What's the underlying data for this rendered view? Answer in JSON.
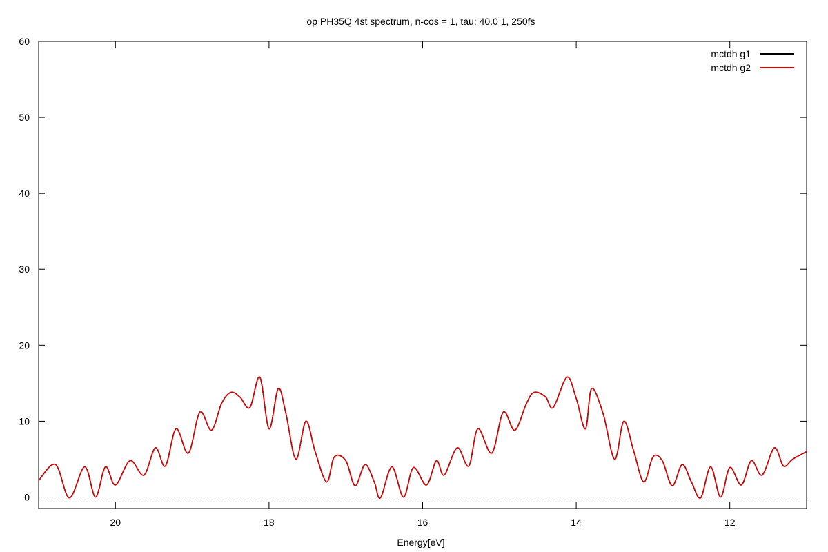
{
  "chart_data": {
    "type": "line",
    "title": "op PH35Q 4st spectrum, n-cos = 1, tau: 40.0 1, 250fs",
    "xlabel": "Energy[eV]",
    "ylabel": "",
    "xlim": [
      21.0,
      11.0
    ],
    "x_reversed": true,
    "ylim": [
      -1.5,
      60
    ],
    "xticks": [
      20,
      18,
      16,
      14,
      12
    ],
    "yticks": [
      0,
      10,
      20,
      30,
      40,
      50,
      60
    ],
    "grid": false,
    "legend_position": "top-right",
    "zero_line": {
      "y": 0,
      "style": "dotted"
    },
    "series": [
      {
        "name": "mctdh g1",
        "color": "#000000",
        "x": [
          21.0,
          20.78,
          20.6,
          20.4,
          20.26,
          20.13,
          20.0,
          19.81,
          19.63,
          19.48,
          19.35,
          19.21,
          19.05,
          18.9,
          18.75,
          18.62,
          18.5,
          18.38,
          18.25,
          18.12,
          18.0,
          17.88,
          17.78,
          17.65,
          17.52,
          17.4,
          17.25,
          17.15,
          17.0,
          16.88,
          16.75,
          16.63,
          16.55,
          16.4,
          16.25,
          16.12,
          15.95,
          15.82,
          15.72,
          15.55,
          15.4,
          15.28,
          15.1,
          14.95,
          14.8,
          14.65,
          14.55,
          14.4,
          14.3,
          14.12,
          14.0,
          13.88,
          13.8,
          13.65,
          13.5,
          13.38,
          13.25,
          13.12,
          13.0,
          12.88,
          12.75,
          12.62,
          12.5,
          12.38,
          12.25,
          12.12,
          12.0,
          11.85,
          11.72,
          11.58,
          11.42,
          11.3,
          11.18,
          11.0
        ],
        "y": [
          2.2,
          4.3,
          -0.1,
          4.0,
          0.0,
          4.0,
          1.6,
          4.8,
          2.9,
          6.5,
          4.1,
          9.0,
          5.8,
          11.2,
          8.8,
          12.3,
          13.8,
          13.2,
          11.8,
          15.8,
          9.0,
          14.3,
          11.0,
          5.0,
          10.0,
          6.0,
          2.0,
          5.3,
          4.8,
          1.5,
          4.3,
          2.0,
          -0.1,
          4.0,
          0.0,
          3.9,
          1.6,
          4.8,
          2.9,
          6.5,
          4.1,
          9.0,
          5.8,
          11.2,
          8.8,
          12.3,
          13.8,
          13.2,
          11.8,
          15.8,
          13.0,
          9.0,
          14.3,
          11.0,
          5.0,
          10.0,
          6.0,
          2.0,
          5.3,
          4.8,
          1.5,
          4.3,
          2.0,
          -0.1,
          4.0,
          0.0,
          3.9,
          1.6,
          4.8,
          2.9,
          6.5,
          4.1,
          5.0,
          6.0
        ]
      },
      {
        "name": "mctdh g2",
        "color": "#dd0000",
        "x": [
          21.0,
          20.78,
          20.6,
          20.4,
          20.26,
          20.13,
          20.0,
          19.81,
          19.63,
          19.48,
          19.35,
          19.21,
          19.05,
          18.9,
          18.75,
          18.62,
          18.5,
          18.38,
          18.25,
          18.12,
          18.0,
          17.88,
          17.78,
          17.65,
          17.52,
          17.4,
          17.25,
          17.15,
          17.0,
          16.88,
          16.75,
          16.63,
          16.55,
          16.4,
          16.25,
          16.12,
          15.95,
          15.82,
          15.72,
          15.55,
          15.4,
          15.28,
          15.1,
          14.95,
          14.8,
          14.65,
          14.55,
          14.4,
          14.3,
          14.12,
          14.0,
          13.88,
          13.8,
          13.65,
          13.5,
          13.38,
          13.25,
          13.12,
          13.0,
          12.88,
          12.75,
          12.62,
          12.5,
          12.38,
          12.25,
          12.12,
          12.0,
          11.85,
          11.72,
          11.58,
          11.42,
          11.3,
          11.18,
          11.0
        ],
        "y": [
          2.2,
          4.3,
          -0.1,
          4.0,
          0.0,
          4.0,
          1.6,
          4.8,
          2.9,
          6.5,
          4.1,
          9.0,
          5.8,
          11.2,
          8.8,
          12.3,
          13.8,
          13.2,
          11.8,
          15.8,
          9.0,
          14.3,
          11.0,
          5.0,
          10.0,
          6.0,
          2.0,
          5.3,
          4.8,
          1.5,
          4.3,
          2.0,
          -0.1,
          4.0,
          0.0,
          3.9,
          1.6,
          4.8,
          2.9,
          6.5,
          4.1,
          9.0,
          5.8,
          11.2,
          8.8,
          12.3,
          13.8,
          13.2,
          11.8,
          15.8,
          13.0,
          9.0,
          14.3,
          11.0,
          5.0,
          10.0,
          6.0,
          2.0,
          5.3,
          4.8,
          1.5,
          4.3,
          2.0,
          -0.1,
          4.0,
          0.0,
          3.9,
          1.6,
          4.8,
          2.9,
          6.5,
          4.1,
          5.0,
          6.0
        ]
      }
    ]
  }
}
